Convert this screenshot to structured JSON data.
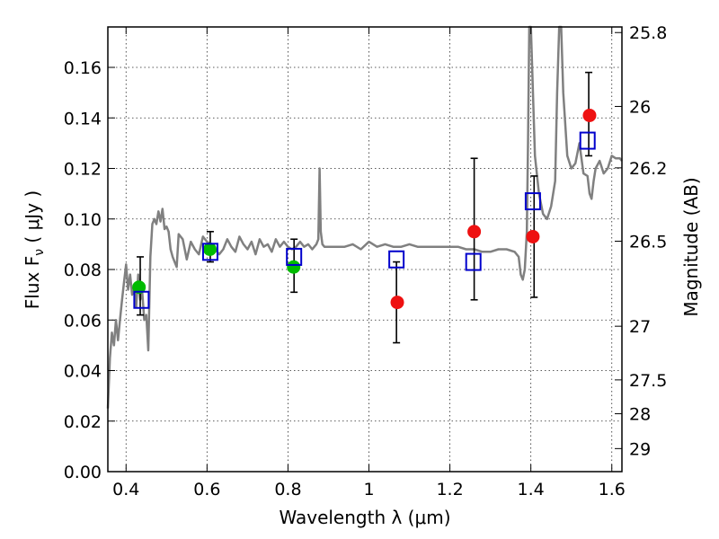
{
  "chart_data": {
    "type": "scatter",
    "xlabel": "Wavelength  λ (μm)",
    "ylabel": "Flux  F",
    "ylabel_sub": "ν",
    "ylabel_unit": "  ( μJy )",
    "y2label": "Magnitude (AB)",
    "xlim": [
      0.355,
      1.625
    ],
    "ylim": [
      0.0,
      0.176
    ],
    "grid": true,
    "x_ticks": [
      0.4,
      0.6,
      0.8,
      1.0,
      1.2,
      1.4,
      1.6
    ],
    "x_tick_labels": [
      "0.4",
      "0.6",
      "0.8",
      "1",
      "1.2",
      "1.4",
      "1.6"
    ],
    "y_ticks": [
      0.0,
      0.02,
      0.04,
      0.06,
      0.08,
      0.1,
      0.12,
      0.14,
      0.16
    ],
    "y_tick_labels": [
      "0.00",
      "0.02",
      "0.04",
      "0.06",
      "0.08",
      "0.10",
      "0.12",
      "0.14",
      "0.16"
    ],
    "y2_ticks": [
      25.8,
      26,
      26.2,
      26.5,
      27,
      27.5,
      28,
      29
    ],
    "y2_tick_labels": [
      "25.8",
      "26",
      "26.2",
      "26.5",
      "27",
      "27.5",
      "28",
      "29"
    ],
    "colors": {
      "spectrum": "#808080",
      "green_points": "#00bb00",
      "red_points": "#ee1111",
      "model_boxes": "#0000cc",
      "errorbars": "#000000"
    },
    "series": [
      {
        "kind": "spectrum",
        "x": [
          0.355,
          0.36,
          0.365,
          0.37,
          0.375,
          0.38,
          0.385,
          0.39,
          0.395,
          0.4,
          0.405,
          0.41,
          0.415,
          0.42,
          0.425,
          0.43,
          0.435,
          0.44,
          0.445,
          0.45,
          0.455,
          0.46,
          0.465,
          0.47,
          0.475,
          0.48,
          0.485,
          0.49,
          0.495,
          0.5,
          0.505,
          0.51,
          0.515,
          0.52,
          0.525,
          0.53,
          0.54,
          0.55,
          0.56,
          0.57,
          0.58,
          0.59,
          0.6,
          0.61,
          0.62,
          0.63,
          0.64,
          0.65,
          0.66,
          0.67,
          0.68,
          0.69,
          0.7,
          0.71,
          0.72,
          0.73,
          0.74,
          0.75,
          0.76,
          0.77,
          0.78,
          0.79,
          0.8,
          0.81,
          0.82,
          0.83,
          0.84,
          0.85,
          0.86,
          0.87,
          0.875,
          0.878,
          0.881,
          0.885,
          0.89,
          0.9,
          0.92,
          0.94,
          0.96,
          0.98,
          1.0,
          1.02,
          1.04,
          1.06,
          1.08,
          1.1,
          1.12,
          1.14,
          1.16,
          1.18,
          1.2,
          1.22,
          1.24,
          1.26,
          1.28,
          1.3,
          1.32,
          1.34,
          1.36,
          1.37,
          1.375,
          1.38,
          1.385,
          1.39,
          1.393,
          1.396,
          1.4,
          1.41,
          1.42,
          1.43,
          1.44,
          1.45,
          1.46,
          1.465,
          1.47,
          1.475,
          1.48,
          1.49,
          1.5,
          1.51,
          1.52,
          1.53,
          1.54,
          1.545,
          1.55,
          1.555,
          1.56,
          1.57,
          1.58,
          1.59,
          1.6,
          1.61,
          1.62,
          1.625
        ],
        "y": [
          0.025,
          0.045,
          0.055,
          0.05,
          0.06,
          0.052,
          0.06,
          0.068,
          0.075,
          0.082,
          0.072,
          0.078,
          0.07,
          0.072,
          0.065,
          0.078,
          0.068,
          0.071,
          0.06,
          0.062,
          0.048,
          0.085,
          0.098,
          0.1,
          0.098,
          0.103,
          0.099,
          0.104,
          0.096,
          0.097,
          0.095,
          0.088,
          0.085,
          0.083,
          0.081,
          0.094,
          0.092,
          0.084,
          0.091,
          0.088,
          0.086,
          0.093,
          0.091,
          0.09,
          0.088,
          0.086,
          0.088,
          0.092,
          0.089,
          0.087,
          0.093,
          0.09,
          0.088,
          0.091,
          0.086,
          0.092,
          0.089,
          0.09,
          0.087,
          0.092,
          0.089,
          0.091,
          0.089,
          0.088,
          0.089,
          0.091,
          0.089,
          0.09,
          0.088,
          0.09,
          0.092,
          0.12,
          0.095,
          0.09,
          0.089,
          0.089,
          0.089,
          0.089,
          0.09,
          0.088,
          0.091,
          0.089,
          0.09,
          0.089,
          0.089,
          0.09,
          0.089,
          0.089,
          0.089,
          0.089,
          0.089,
          0.089,
          0.088,
          0.088,
          0.087,
          0.087,
          0.088,
          0.088,
          0.087,
          0.085,
          0.078,
          0.076,
          0.08,
          0.095,
          0.13,
          0.176,
          0.176,
          0.125,
          0.11,
          0.102,
          0.1,
          0.105,
          0.115,
          0.15,
          0.176,
          0.176,
          0.15,
          0.125,
          0.12,
          0.122,
          0.13,
          0.118,
          0.117,
          0.11,
          0.108,
          0.115,
          0.12,
          0.123,
          0.118,
          0.12,
          0.125,
          0.124,
          0.124,
          0.123
        ]
      },
      {
        "kind": "points",
        "color": "green",
        "x": [
          0.432,
          0.607,
          0.814
        ],
        "y": [
          0.073,
          0.088,
          0.081
        ]
      },
      {
        "kind": "points",
        "color": "red",
        "x": [
          1.07,
          1.26,
          1.405,
          1.545
        ],
        "y": [
          0.067,
          0.095,
          0.093,
          0.141
        ]
      },
      {
        "kind": "boxes",
        "x": [
          0.438,
          0.608,
          0.815,
          1.068,
          1.258,
          1.405,
          1.54
        ],
        "y": [
          0.068,
          0.087,
          0.085,
          0.084,
          0.083,
          0.107,
          0.131
        ]
      },
      {
        "kind": "errorbars",
        "x": [
          0.435,
          0.608,
          0.815,
          1.068,
          1.26,
          1.408,
          1.543
        ],
        "low": [
          0.062,
          0.083,
          0.071,
          0.051,
          0.068,
          0.069,
          0.125
        ],
        "high": [
          0.085,
          0.095,
          0.092,
          0.083,
          0.124,
          0.117,
          0.158
        ]
      }
    ]
  }
}
